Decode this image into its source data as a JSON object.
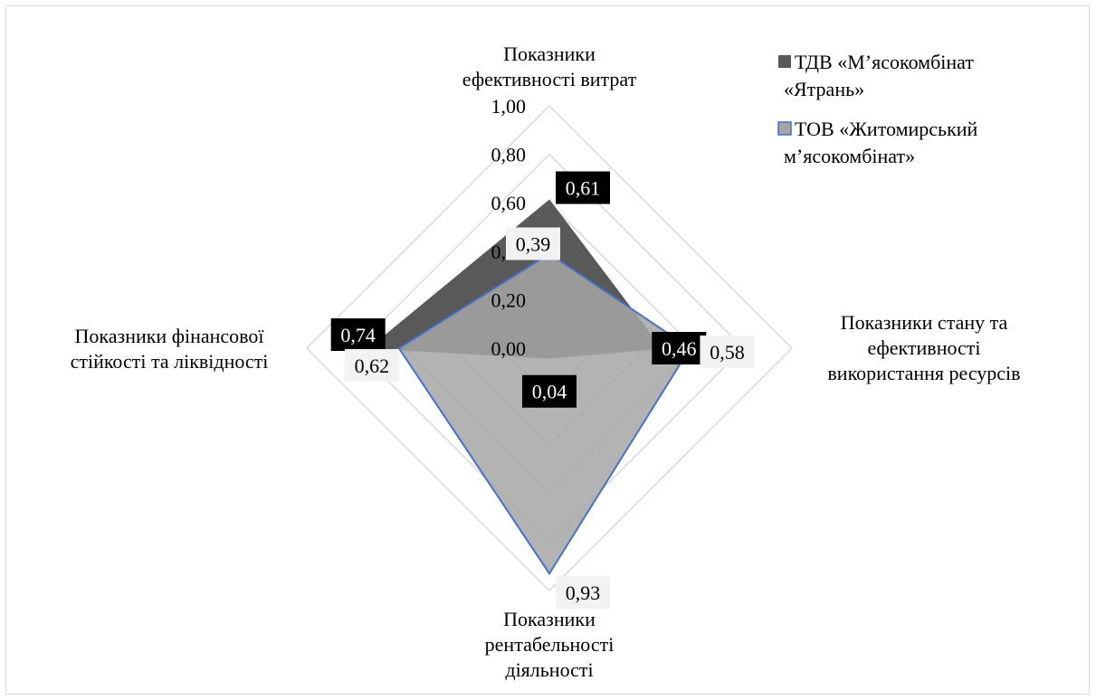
{
  "chart_data": {
    "type": "radar",
    "axes": [
      {
        "label_lines": [
          "Показники",
          "ефективності витрат"
        ]
      },
      {
        "label_lines": [
          "Показники стану та",
          "ефективності",
          "використання ресурсів"
        ]
      },
      {
        "label_lines": [
          "Показники",
          "рентабельності",
          "діяльності"
        ]
      },
      {
        "label_lines": [
          "Показники фінансової",
          "стійкості та ліквідності"
        ]
      }
    ],
    "radial_ticks": [
      "0,00",
      "0,20",
      "0,40",
      "0,60",
      "0,80",
      "1,00"
    ],
    "rmax": 1.0,
    "series": [
      {
        "name_lines": [
          "ТДВ «М’ясокомбінат",
          "«Ятрань»"
        ],
        "values": [
          0.61,
          0.46,
          0.04,
          0.74
        ],
        "labels": [
          "0,61",
          "0,46",
          "0,04",
          "0,74"
        ],
        "fill": "#595959",
        "stroke": "#595959",
        "label_bg": "#000000",
        "label_color": "#ffffff"
      },
      {
        "name_lines": [
          "ТОВ «Житомирський",
          "м’ясокомбінат»"
        ],
        "values": [
          0.39,
          0.58,
          0.93,
          0.62
        ],
        "labels": [
          "0,39",
          "0,58",
          "0,93",
          "0,62"
        ],
        "fill": "#a6a6a6",
        "stroke": "#4472c4",
        "label_bg": "#f2f2f2",
        "label_color": "#000000"
      }
    ],
    "grid": true,
    "legend_position": "top-right"
  }
}
